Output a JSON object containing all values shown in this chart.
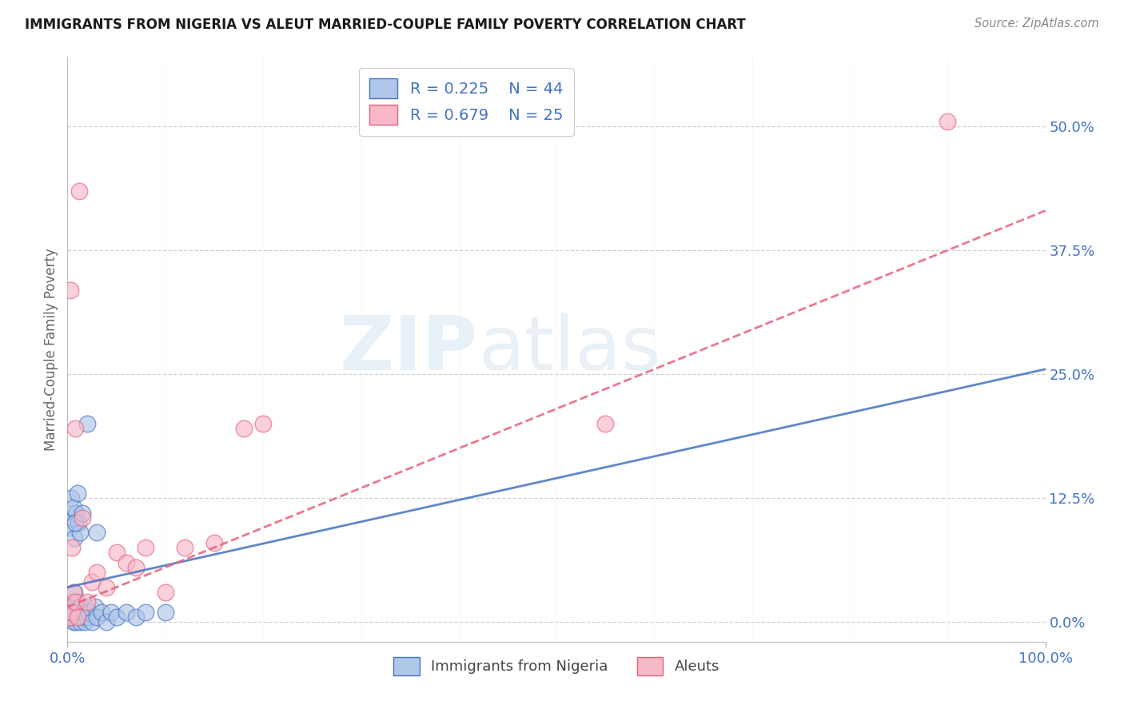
{
  "title": "IMMIGRANTS FROM NIGERIA VS ALEUT MARRIED-COUPLE FAMILY POVERTY CORRELATION CHART",
  "source": "Source: ZipAtlas.com",
  "ylabel": "Married-Couple Family Poverty",
  "ytick_vals": [
    0.0,
    12.5,
    25.0,
    37.5,
    50.0
  ],
  "xlim": [
    0.0,
    100.0
  ],
  "ylim": [
    -2.0,
    57.0
  ],
  "watermark_zip": "ZIP",
  "watermark_atlas": "atlas",
  "nigeria_color": "#aec6e8",
  "aleut_color": "#f7b8c8",
  "nigeria_line_color": "#4472c4",
  "aleut_line_color": "#e8607a",
  "nigeria_scatter_x": [
    0.2,
    0.3,
    0.4,
    0.5,
    0.6,
    0.7,
    0.8,
    0.9,
    1.0,
    1.1,
    1.2,
    1.3,
    1.4,
    1.5,
    1.6,
    1.7,
    1.8,
    1.9,
    2.0,
    2.2,
    2.5,
    2.8,
    3.0,
    3.5,
    4.0,
    4.5,
    5.0,
    6.0,
    7.0,
    8.0,
    0.3,
    0.5,
    0.7,
    0.9,
    1.1,
    1.3,
    0.4,
    0.6,
    0.8,
    1.0,
    1.5,
    2.0,
    3.0,
    10.0
  ],
  "nigeria_scatter_y": [
    1.0,
    0.5,
    2.0,
    1.5,
    0.0,
    3.0,
    1.0,
    0.0,
    2.0,
    1.0,
    0.5,
    0.0,
    1.5,
    1.0,
    0.5,
    1.0,
    0.0,
    1.5,
    0.5,
    1.0,
    0.0,
    1.5,
    0.5,
    1.0,
    0.0,
    1.0,
    0.5,
    1.0,
    0.5,
    1.0,
    9.5,
    10.5,
    8.5,
    11.0,
    10.0,
    9.0,
    12.5,
    11.5,
    10.0,
    13.0,
    11.0,
    20.0,
    9.0,
    1.0
  ],
  "aleut_scatter_x": [
    0.2,
    0.4,
    0.6,
    0.8,
    1.0,
    1.5,
    2.0,
    2.5,
    3.0,
    4.0,
    5.0,
    6.0,
    7.0,
    8.0,
    10.0,
    12.0,
    15.0,
    18.0,
    20.0,
    0.3,
    0.5,
    0.8,
    1.2,
    55.0,
    90.0
  ],
  "aleut_scatter_y": [
    0.5,
    1.0,
    3.0,
    2.0,
    0.5,
    10.5,
    2.0,
    4.0,
    5.0,
    3.5,
    7.0,
    6.0,
    5.5,
    7.5,
    3.0,
    7.5,
    8.0,
    19.5,
    20.0,
    33.5,
    7.5,
    19.5,
    43.5,
    20.0,
    50.5
  ],
  "nigeria_trend_x0": 0.0,
  "nigeria_trend_x1": 100.0,
  "nigeria_trend_y0": 3.5,
  "nigeria_trend_y1": 25.5,
  "aleut_trend_x0": 0.0,
  "aleut_trend_x1": 100.0,
  "aleut_trend_y0": 1.5,
  "aleut_trend_y1": 41.5,
  "background_color": "#ffffff",
  "grid_color": "#cccccc",
  "title_color": "#1a1a1a",
  "source_color": "#888888",
  "axis_text_color": "#4472c4",
  "ylabel_color": "#666666"
}
